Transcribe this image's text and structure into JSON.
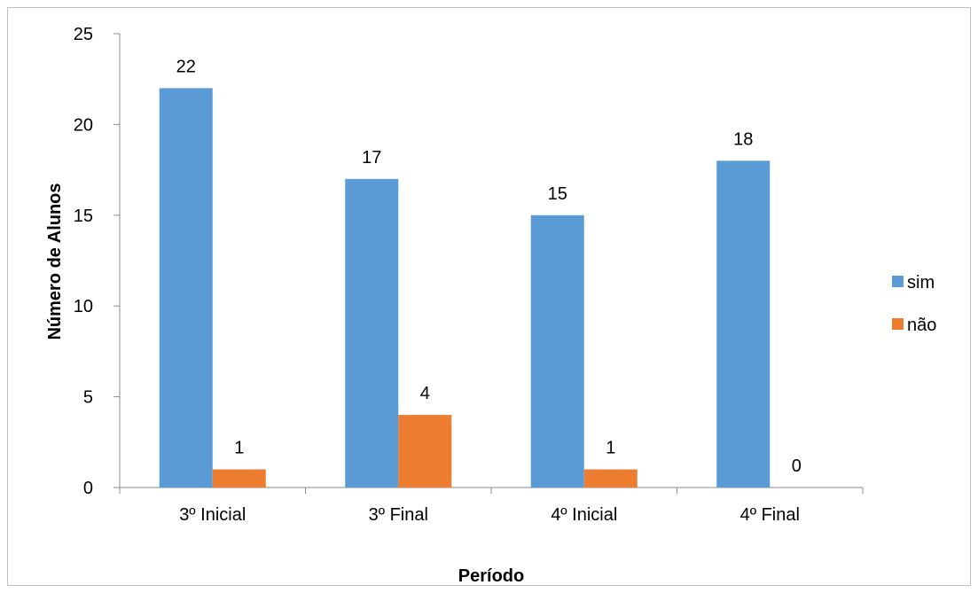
{
  "chart_data": {
    "type": "bar",
    "title": "",
    "xlabel": "Período",
    "ylabel": "Número de Alunos",
    "categories": [
      "3º Inicial",
      "3º Final",
      "4º Inicial",
      "4º Final"
    ],
    "series": [
      {
        "name": "sim",
        "color": "#5B9BD5",
        "values": [
          22,
          17,
          15,
          18
        ]
      },
      {
        "name": "não",
        "color": "#ED7D31",
        "values": [
          1,
          4,
          1,
          0
        ]
      }
    ],
    "ylim": [
      0,
      25
    ],
    "yticks": [
      0,
      5,
      10,
      15,
      20,
      25
    ],
    "grid": false,
    "legend_position": "right",
    "data_labels": true
  }
}
